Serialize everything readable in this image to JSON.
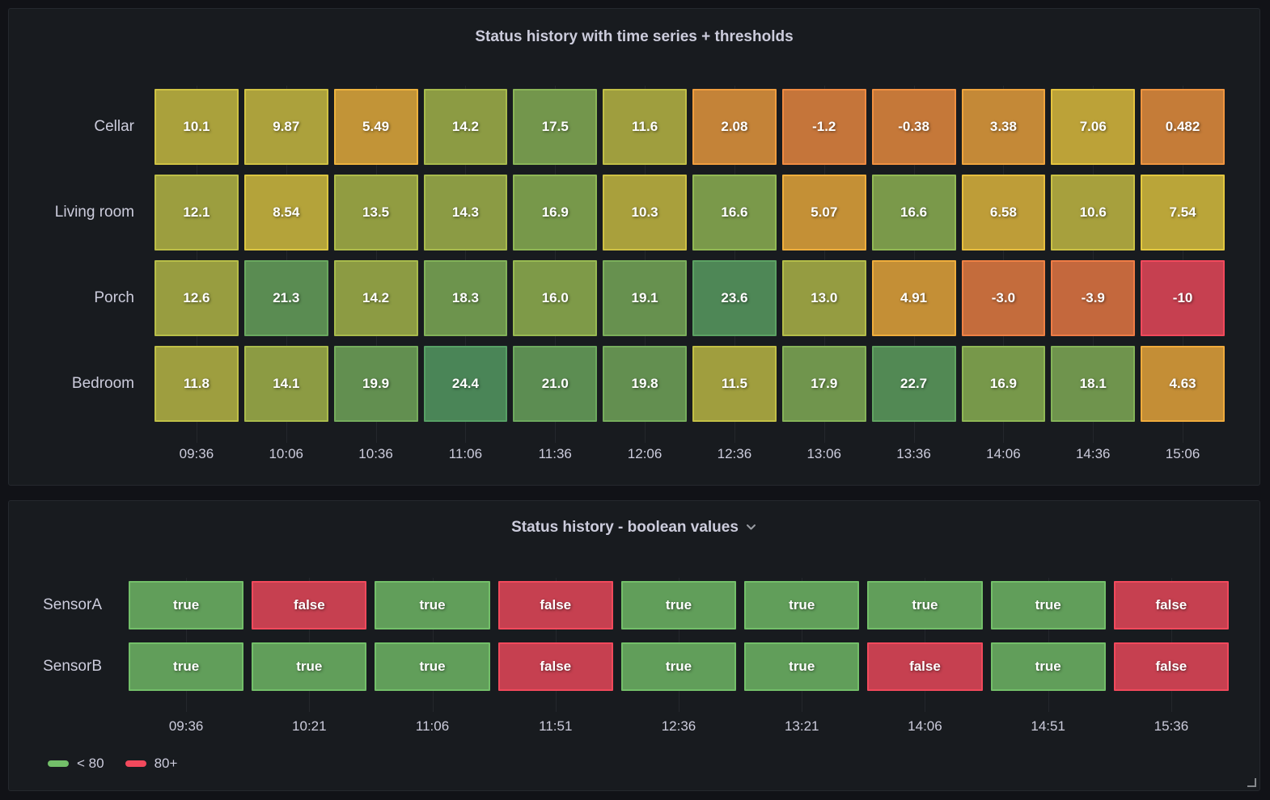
{
  "colors": {
    "page_bg": "#111217",
    "panel_bg": "#181b1f",
    "panel_border": "#25282e",
    "title_text": "#ccccdc",
    "axis_text": "#ccccdc",
    "cell_text": "#ffffff",
    "green": "#73BF69",
    "red": "#F2495C"
  },
  "panel1": {
    "title": "Status history with time series + thresholds"
  },
  "panel2": {
    "title": "Status history - boolean values"
  },
  "chart_data": [
    {
      "type": "heatmap",
      "subtype": "status-history",
      "panel": "panel1",
      "title": "Status history with time series + thresholds",
      "x_ticks": [
        "09:36",
        "10:06",
        "10:36",
        "11:06",
        "11:36",
        "12:06",
        "12:36",
        "13:06",
        "13:36",
        "14:06",
        "14:36",
        "15:06"
      ],
      "categories_y": [
        "Cellar",
        "Living room",
        "Porch",
        "Bedroom"
      ],
      "series": [
        {
          "name": "Cellar",
          "values": [
            "10.1",
            "9.87",
            "5.49",
            "14.2",
            "17.5",
            "11.6",
            "2.08",
            "-1.2",
            "-0.38",
            "3.38",
            "7.06",
            "0.482"
          ]
        },
        {
          "name": "Living room",
          "values": [
            "12.1",
            "8.54",
            "13.5",
            "14.3",
            "16.9",
            "10.3",
            "16.6",
            "5.07",
            "16.6",
            "6.58",
            "10.6",
            "7.54"
          ]
        },
        {
          "name": "Porch",
          "values": [
            "12.6",
            "21.3",
            "14.2",
            "18.3",
            "16.0",
            "19.1",
            "23.6",
            "13.0",
            "4.91",
            "-3.0",
            "-3.9",
            "-10"
          ]
        },
        {
          "name": "Bedroom",
          "values": [
            "11.8",
            "14.1",
            "19.9",
            "24.4",
            "21.0",
            "19.8",
            "11.5",
            "17.9",
            "22.7",
            "16.9",
            "18.1",
            "4.63"
          ]
        }
      ],
      "value_range": [
        -10,
        24.4
      ],
      "grid": true,
      "color_scale": {
        "stops": [
          {
            "v": -10,
            "c": "#F2495C"
          },
          {
            "v": -4,
            "c": "#EF7B45"
          },
          {
            "v": 0,
            "c": "#F0923F"
          },
          {
            "v": 5,
            "c": "#EFAD3C"
          },
          {
            "v": 7.5,
            "c": "#E3C83F"
          },
          {
            "v": 10.5,
            "c": "#CCC144"
          },
          {
            "v": 13.5,
            "c": "#AFBC4A"
          },
          {
            "v": 16.5,
            "c": "#93B954"
          },
          {
            "v": 19,
            "c": "#7CAF5B"
          },
          {
            "v": 22,
            "c": "#65A660"
          },
          {
            "v": 24.4,
            "c": "#57A065"
          }
        ],
        "fill_opacity": 0.8
      }
    },
    {
      "type": "heatmap",
      "subtype": "status-history-boolean",
      "panel": "panel2",
      "title": "Status history - boolean values",
      "x_ticks": [
        "09:36",
        "10:21",
        "11:06",
        "11:51",
        "12:36",
        "13:21",
        "14:06",
        "14:51",
        "15:36"
      ],
      "categories_y": [
        "SensorA",
        "SensorB"
      ],
      "series": [
        {
          "name": "SensorA",
          "values": [
            "true",
            "false",
            "true",
            "false",
            "true",
            "true",
            "true",
            "true",
            "false"
          ]
        },
        {
          "name": "SensorB",
          "values": [
            "true",
            "true",
            "true",
            "false",
            "true",
            "true",
            "false",
            "true",
            "false"
          ]
        }
      ],
      "value_colors": {
        "true": "#73BF69",
        "false": "#F2495C"
      },
      "fill_opacity": 0.8,
      "grid": true,
      "legend_position": "bottom-left",
      "legend": [
        {
          "label": "< 80",
          "color": "#73BF69"
        },
        {
          "label": "80+",
          "color": "#F2495C"
        }
      ]
    }
  ]
}
